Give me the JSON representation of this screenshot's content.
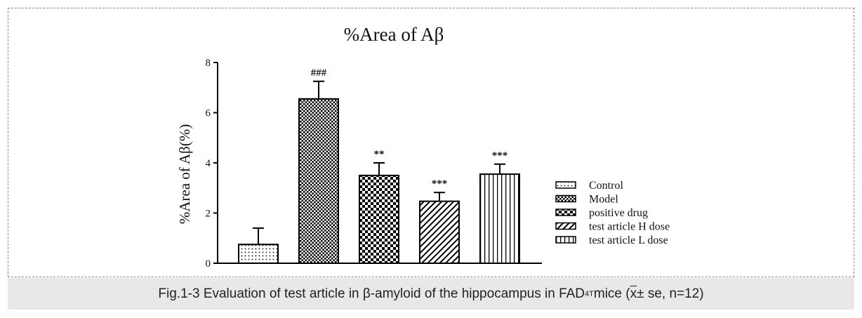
{
  "caption": {
    "prefix": "Fig.1-3 Evaluation of test article in β-amyloid of the hippocampus in FAD",
    "superscript": "4T",
    "mid": " mice (",
    "xbar": "x",
    "suffix": " ± se, n=12)"
  },
  "chart_data": {
    "type": "bar",
    "title": "%Area of Aβ",
    "ylabel": "%Area of Aβ(%)",
    "xlabel": "",
    "ylim": [
      0,
      8
    ],
    "yticks": [
      0,
      2,
      4,
      6,
      8
    ],
    "categories": [
      "Control",
      "Model",
      "positive drug",
      "test article H dose",
      "test article L dose"
    ],
    "values": [
      0.75,
      6.55,
      3.5,
      2.47,
      3.55
    ],
    "errors": [
      0.65,
      0.7,
      0.5,
      0.35,
      0.4
    ],
    "annotations": [
      "",
      "###",
      "**",
      "***",
      "***"
    ],
    "patterns": [
      "dots",
      "checker-fine",
      "checker-coarse",
      "diagonal",
      "vertical"
    ],
    "legend": {
      "position": "right",
      "entries": [
        "Control",
        "Model",
        "positive drug",
        "test article H dose",
        "test article L dose"
      ]
    }
  }
}
